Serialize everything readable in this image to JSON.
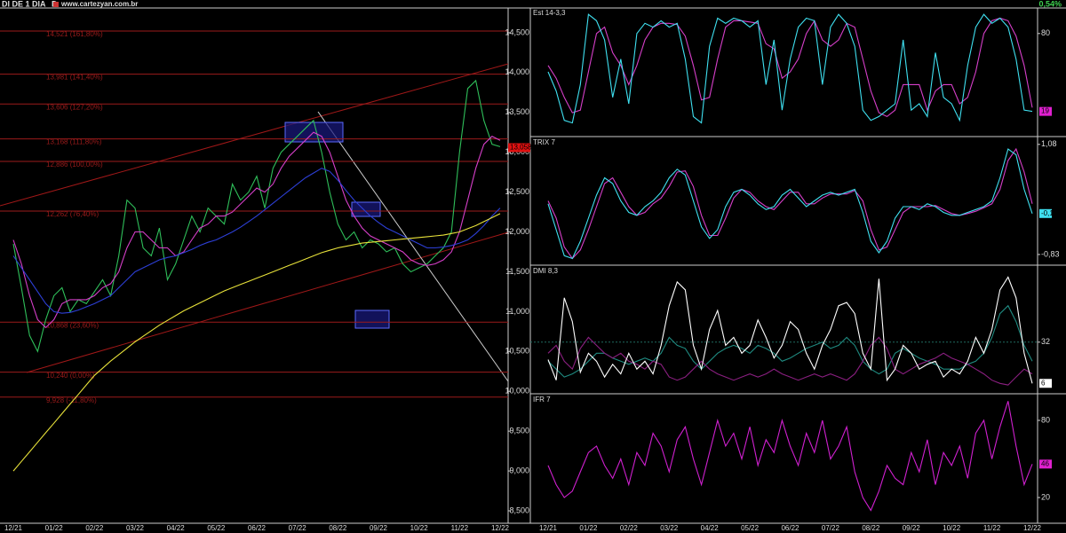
{
  "header": {
    "symbol": "DI DE 1 DIA",
    "period": "D",
    "site": "www.cartezyan.com.br",
    "change": "0,54%"
  },
  "chart_data": [
    {
      "type": "line",
      "panel": "main",
      "categories": [
        "12/21",
        null,
        null,
        null,
        null,
        "01/22",
        null,
        null,
        null,
        null,
        "02/22",
        null,
        null,
        null,
        null,
        "03/22",
        null,
        null,
        null,
        null,
        "04/22",
        null,
        null,
        null,
        null,
        "05/22",
        null,
        null,
        null,
        null,
        "06/22",
        null,
        null,
        null,
        null,
        "07/22",
        null,
        null,
        null,
        null,
        "08/22",
        null,
        null,
        null,
        null,
        "09/22",
        null,
        null,
        null,
        null,
        "10/22",
        null,
        null,
        null,
        null,
        "11/22",
        null,
        null,
        null,
        null,
        "12/22"
      ],
      "series": [
        {
          "color": "#2fbf5a",
          "values": [
            11850,
            11300,
            10700,
            10500,
            10900,
            11200,
            11300,
            11000,
            11150,
            11100,
            11250,
            11400,
            11200,
            11700,
            12400,
            12300,
            11800,
            11700,
            12050,
            11400,
            11600,
            11900,
            12200,
            12000,
            12300,
            12200,
            12100,
            12600,
            12400,
            12500,
            12700,
            12300,
            12800,
            13000,
            13100,
            13200,
            13300,
            13400,
            13000,
            12500,
            12100,
            11900,
            12000,
            11800,
            11900,
            11850,
            11750,
            11800,
            11600,
            11500,
            11550,
            11600,
            11700,
            11800,
            12000,
            13000,
            13800,
            13900,
            13400,
            13100,
            13070
          ]
        },
        {
          "color": "#d63fc9",
          "values": [
            11900,
            11600,
            11200,
            10900,
            10800,
            10900,
            11100,
            11150,
            11150,
            11150,
            11200,
            11300,
            11350,
            11500,
            11800,
            12000,
            12000,
            11900,
            11800,
            11800,
            11700,
            11750,
            11900,
            12050,
            12100,
            12200,
            12200,
            12250,
            12350,
            12450,
            12550,
            12500,
            12600,
            12800,
            12950,
            13050,
            13150,
            13250,
            13200,
            13000,
            12700,
            12400,
            12200,
            12050,
            11950,
            11900,
            11850,
            11800,
            11750,
            11650,
            11600,
            11580,
            11600,
            11650,
            11750,
            12000,
            12400,
            12800,
            13100,
            13200,
            13150
          ]
        },
        {
          "color": "#2d3fd6",
          "values": [
            11700,
            11550,
            11400,
            11250,
            11100,
            11000,
            10980,
            10990,
            11020,
            11060,
            11100,
            11150,
            11200,
            11300,
            11400,
            11500,
            11550,
            11600,
            11650,
            11680,
            11700,
            11740,
            11780,
            11830,
            11870,
            11900,
            11950,
            12000,
            12060,
            12130,
            12200,
            12280,
            12360,
            12440,
            12520,
            12600,
            12680,
            12740,
            12800,
            12760,
            12650,
            12520,
            12400,
            12300,
            12200,
            12120,
            12050,
            12000,
            11950,
            11900,
            11850,
            11800,
            11800,
            11810,
            11830,
            11860,
            11900,
            11980,
            12080,
            12200,
            12300
          ]
        },
        {
          "color": "#e8e23a",
          "values": [
            9000,
            9120,
            9240,
            9360,
            9480,
            9600,
            9720,
            9840,
            9960,
            10080,
            10200,
            10290,
            10380,
            10460,
            10540,
            10620,
            10690,
            10760,
            10830,
            10890,
            10950,
            11010,
            11060,
            11110,
            11160,
            11210,
            11260,
            11300,
            11340,
            11380,
            11420,
            11460,
            11500,
            11540,
            11580,
            11620,
            11660,
            11700,
            11740,
            11770,
            11800,
            11820,
            11840,
            11860,
            11870,
            11880,
            11890,
            11900,
            11910,
            11920,
            11930,
            11940,
            11950,
            11960,
            11980,
            12000,
            12040,
            12080,
            12130,
            12180,
            12230
          ]
        }
      ],
      "ylim": [
        8344,
        14811
      ],
      "yticks": [
        {
          "value": 14500,
          "label": "14,500"
        },
        {
          "value": 14000,
          "label": "14,000"
        },
        {
          "value": 13500,
          "label": "13,500"
        },
        {
          "value": 13000,
          "label": "13,000"
        },
        {
          "value": 12500,
          "label": "12,500"
        },
        {
          "value": 12000,
          "label": "12,000"
        },
        {
          "value": 11500,
          "label": "11,500"
        },
        {
          "value": 11000,
          "label": "11,000"
        },
        {
          "value": 10500,
          "label": "10,500"
        },
        {
          "value": 10000,
          "label": "10,000"
        },
        {
          "value": 9500,
          "label": "9,500"
        },
        {
          "value": 9000,
          "label": "9,000"
        },
        {
          "value": 8500,
          "label": "8,500"
        }
      ],
      "levels": [
        {
          "value": 14521,
          "label": "14,521 (161,80%)"
        },
        {
          "value": 13981,
          "label": "13,981 (141,40%)"
        },
        {
          "value": 13606,
          "label": "13,606 (127,20%)"
        },
        {
          "value": 13168,
          "label": "13,168 (111,80%)"
        },
        {
          "value": 12886,
          "label": "12,886 (100,00%)"
        },
        {
          "value": 12262,
          "label": "12,262 (76,40%)"
        },
        {
          "value": 10868,
          "label": "10,868 (23,60%)"
        },
        {
          "value": 10240,
          "label": "10,240 (0,00%)"
        },
        {
          "value": 9928,
          "label": "9,928 (-11,80%)"
        }
      ],
      "level_color": "#9b1b1b",
      "marker": {
        "value": 13058,
        "label": "13,058"
      },
      "marker_color": "#e01010"
    },
    {
      "type": "line",
      "panel": "est",
      "title": "Est 14-3,3",
      "series": [
        {
          "color": "#d63fc9",
          "values": [
            55,
            45,
            30,
            18,
            20,
            50,
            80,
            85,
            65,
            55,
            40,
            55,
            75,
            85,
            88,
            88,
            87,
            78,
            55,
            28,
            30,
            60,
            85,
            90,
            90,
            89,
            88,
            72,
            68,
            45,
            50,
            60,
            80,
            90,
            75,
            70,
            75,
            88,
            85,
            60,
            35,
            18,
            15,
            20,
            40,
            40,
            40,
            20,
            35,
            40,
            40,
            25,
            30,
            50,
            80,
            90,
            92,
            90,
            78,
            55,
            22
          ]
        },
        {
          "color": "#3fe0f0",
          "values": [
            50,
            35,
            12,
            10,
            40,
            95,
            90,
            75,
            30,
            60,
            25,
            80,
            88,
            85,
            90,
            85,
            88,
            60,
            15,
            10,
            70,
            92,
            88,
            92,
            90,
            85,
            90,
            40,
            75,
            20,
            60,
            85,
            92,
            90,
            40,
            85,
            95,
            88,
            70,
            20,
            12,
            15,
            20,
            25,
            75,
            20,
            25,
            15,
            65,
            30,
            25,
            12,
            55,
            85,
            95,
            88,
            92,
            85,
            60,
            20,
            19
          ]
        }
      ],
      "ylim": [
        0,
        100
      ],
      "yticks": [
        80
      ],
      "marker": 19,
      "marker_color": "#e020d0"
    },
    {
      "type": "line",
      "panel": "trix",
      "title": "TRIX 7",
      "series": [
        {
          "color": "#d63fc9",
          "values": [
            0.1,
            -0.2,
            -0.7,
            -0.9,
            -0.75,
            -0.4,
            0.0,
            0.4,
            0.5,
            0.25,
            0.0,
            -0.15,
            -0.1,
            0.05,
            0.15,
            0.35,
            0.6,
            0.62,
            0.35,
            -0.15,
            -0.5,
            -0.5,
            -0.2,
            0.15,
            0.3,
            0.25,
            0.1,
            0.0,
            -0.05,
            0.1,
            0.25,
            0.25,
            0.05,
            0.05,
            0.15,
            0.22,
            0.22,
            0.22,
            0.28,
            0.1,
            -0.4,
            -0.75,
            -0.7,
            -0.4,
            -0.1,
            0.0,
            0.0,
            0.0,
            0.02,
            -0.05,
            -0.12,
            -0.15,
            -0.12,
            -0.08,
            -0.02,
            0.05,
            0.3,
            0.8,
            1.0,
            0.6,
            0.05
          ]
        },
        {
          "color": "#3fe0f0",
          "values": [
            0.05,
            -0.4,
            -0.85,
            -0.9,
            -0.6,
            -0.2,
            0.2,
            0.5,
            0.4,
            0.1,
            -0.1,
            -0.15,
            0.0,
            0.1,
            0.25,
            0.5,
            0.65,
            0.55,
            0.1,
            -0.35,
            -0.55,
            -0.4,
            0.0,
            0.25,
            0.3,
            0.2,
            0.05,
            -0.05,
            0.0,
            0.2,
            0.3,
            0.15,
            0.0,
            0.1,
            0.2,
            0.25,
            0.2,
            0.25,
            0.3,
            -0.1,
            -0.6,
            -0.8,
            -0.6,
            -0.2,
            0.0,
            0.0,
            -0.05,
            0.05,
            0.0,
            -0.1,
            -0.15,
            -0.15,
            -0.1,
            -0.05,
            0.0,
            0.1,
            0.5,
            1.0,
            0.9,
            0.3,
            -0.12
          ]
        }
      ],
      "ylim": [
        -1.0,
        1.2
      ],
      "yticks": [
        {
          "value": 1.08,
          "label": "1,08"
        },
        {
          "value": -0.83,
          "label": "-0,83"
        }
      ],
      "marker": {
        "value": -0.12,
        "label": "-0,12"
      },
      "marker_color": "#3fe0f0"
    },
    {
      "type": "line",
      "panel": "dmi",
      "title": "DMI 8,3",
      "series": [
        {
          "color": "#1f8a80",
          "values": [
            20,
            15,
            10,
            12,
            15,
            20,
            25,
            25,
            22,
            20,
            18,
            20,
            22,
            20,
            25,
            35,
            30,
            28,
            20,
            15,
            20,
            25,
            28,
            30,
            28,
            25,
            30,
            28,
            25,
            20,
            22,
            25,
            28,
            30,
            32,
            28,
            30,
            35,
            30,
            20,
            15,
            12,
            15,
            25,
            28,
            25,
            22,
            20,
            18,
            15,
            15,
            15,
            18,
            20,
            25,
            35,
            50,
            55,
            45,
            30,
            20
          ]
        },
        {
          "color": "#8a1f80",
          "values": [
            25,
            30,
            20,
            15,
            28,
            35,
            30,
            25,
            22,
            25,
            20,
            18,
            15,
            20,
            18,
            10,
            8,
            10,
            15,
            20,
            15,
            12,
            10,
            8,
            10,
            12,
            10,
            12,
            15,
            12,
            10,
            8,
            10,
            12,
            10,
            12,
            10,
            8,
            12,
            20,
            30,
            35,
            28,
            15,
            12,
            15,
            18,
            20,
            22,
            25,
            22,
            20,
            18,
            15,
            12,
            8,
            6,
            5,
            10,
            15,
            12
          ]
        },
        {
          "color": "#ffffff",
          "values": [
            21,
            8,
            60,
            45,
            13,
            25,
            20,
            10,
            18,
            12,
            25,
            15,
            20,
            12,
            30,
            55,
            70,
            65,
            30,
            15,
            40,
            52,
            30,
            35,
            25,
            30,
            46,
            35,
            22,
            30,
            45,
            40,
            25,
            15,
            30,
            40,
            55,
            57,
            50,
            25,
            15,
            72,
            8,
            15,
            30,
            25,
            15,
            18,
            20,
            10,
            15,
            12,
            20,
            35,
            25,
            40,
            65,
            73,
            60,
            25,
            6
          ]
        }
      ],
      "ylim": [
        0,
        80
      ],
      "yticks": [
        32
      ],
      "grid": true,
      "grid_color": "#1f6a60",
      "marker": 6,
      "marker_color": "#ffffff"
    },
    {
      "type": "line",
      "panel": "ifr",
      "title": "IFR 7",
      "categories": [
        "12/21",
        null,
        null,
        null,
        null,
        "01/22",
        null,
        null,
        null,
        null,
        "02/22",
        null,
        null,
        null,
        null,
        "03/22",
        null,
        null,
        null,
        null,
        "04/22",
        null,
        null,
        null,
        null,
        "05/22",
        null,
        null,
        null,
        null,
        "06/22",
        null,
        null,
        null,
        null,
        "07/22",
        null,
        null,
        null,
        null,
        "08/22",
        null,
        null,
        null,
        null,
        "09/22",
        null,
        null,
        null,
        null,
        "10/22",
        null,
        null,
        null,
        null,
        "11/22",
        null,
        null,
        null,
        null,
        "12/22"
      ],
      "series": [
        {
          "color": "#d020d0",
          "values": [
            45,
            30,
            20,
            25,
            40,
            55,
            60,
            45,
            35,
            50,
            30,
            55,
            45,
            70,
            60,
            40,
            65,
            75,
            50,
            30,
            55,
            80,
            60,
            70,
            50,
            75,
            45,
            65,
            55,
            80,
            60,
            45,
            70,
            55,
            80,
            50,
            60,
            75,
            40,
            20,
            10,
            25,
            45,
            35,
            30,
            55,
            40,
            65,
            30,
            55,
            45,
            60,
            35,
            70,
            80,
            50,
            75,
            95,
            60,
            30,
            46
          ]
        }
      ],
      "ylim": [
        0,
        100
      ],
      "yticks": [
        80,
        20
      ],
      "marker": 46,
      "marker_color": "#e020d0"
    }
  ]
}
